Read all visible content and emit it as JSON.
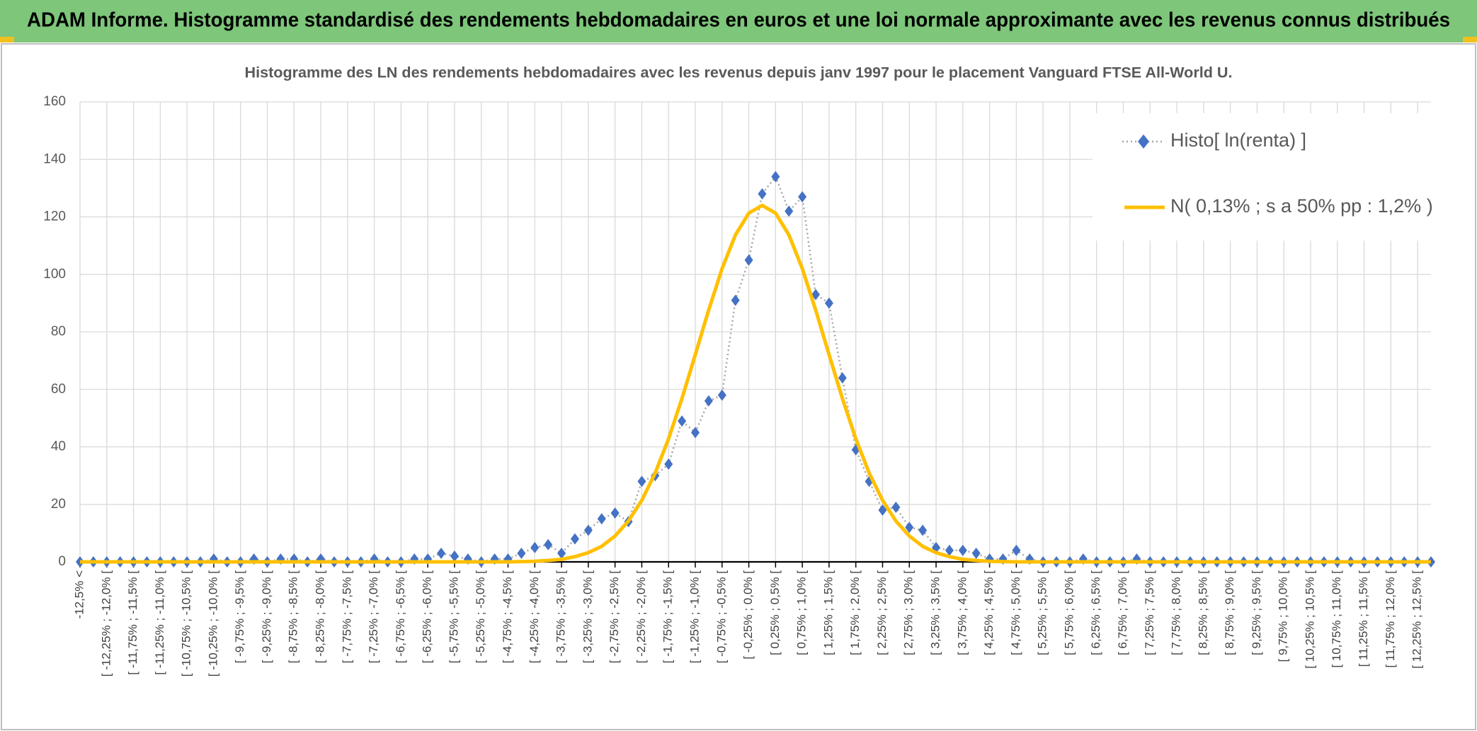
{
  "header": {
    "title": "ADAM Informe. Histogramme standardisé des rendements hebdomadaires en euros et une loi normale approximante avec les revenus connus distribués"
  },
  "chart_data": {
    "type": "line",
    "title": "Histogramme des LN des rendements hebdomadaires avec les revenus depuis janv 1997 pour le placement Vanguard FTSE All-World U.",
    "categories": [
      "-12,5% <",
      null,
      "[ -12,25% ; -12,0% [",
      null,
      "[ -11,75% ; -11,5% [",
      null,
      "[ -11,25% ; -11,0% [",
      null,
      "[ -10,75% ; -10,5% [",
      null,
      "[ -10,25% ; -10,0% [",
      null,
      "[ -9,75% ; -9,5% [",
      null,
      "[ -9,25% ; -9,0% [",
      null,
      "[ -8,75% ; -8,5% [",
      null,
      "[ -8,25% ; -8,0% [",
      null,
      "[ -7,75% ; -7,5% [",
      null,
      "[ -7,25% ; -7,0% [",
      null,
      "[ -6,75% ; -6,5% [",
      null,
      "[ -6,25% ; -6,0% [",
      null,
      "[ -5,75% ; -5,5% [",
      null,
      "[ -5,25% ; -5,0% [",
      null,
      "[ -4,75% ; -4,5% [",
      null,
      "[ -4,25% ; -4,0% [",
      null,
      "[ -3,75% ; -3,5% [",
      null,
      "[ -3,25% ; -3,0% [",
      null,
      "[ -2,75% ; -2,5% [",
      null,
      "[ -2,25% ; -2,0% [",
      null,
      "[ -1,75% ; -1,5% [",
      null,
      "[ -1,25% ; -1,0% [",
      null,
      "[ -0,75% ; -0,5% [",
      null,
      "[ -0,25% ; 0,0% [",
      null,
      "[ 0,25% ; 0,5% [",
      null,
      "[ 0,75% ; 1,0% [",
      null,
      "[ 1,25% ; 1,5% [",
      null,
      "[ 1,75% ; 2,0% [",
      null,
      "[ 2,25% ; 2,5% [",
      null,
      "[ 2,75% ; 3,0% [",
      null,
      "[ 3,25% ; 3,5% [",
      null,
      "[ 3,75% ; 4,0% [",
      null,
      "[ 4,25% ; 4,5% [",
      null,
      "[ 4,75% ; 5,0% [",
      null,
      "[ 5,25% ; 5,5% [",
      null,
      "[ 5,75% ; 6,0% [",
      null,
      "[ 6,25% ; 6,5% [",
      null,
      "[ 6,75% ; 7,0% [",
      null,
      "[ 7,25% ; 7,5% [",
      null,
      "[ 7,75% ; 8,0% [",
      null,
      "[ 8,25% ; 8,5% [",
      null,
      "[ 8,75% ; 9,0% [",
      null,
      "[ 9,25% ; 9,5% [",
      null,
      "[ 9,75% ; 10,0% [",
      null,
      "[ 10,25% ; 10,5% [",
      null,
      "[ 10,75% ; 11,0% [",
      null,
      "[ 11,25% ; 11,5% [",
      null,
      "[ 11,75% ; 12,0% [",
      null,
      "[ 12,25% ; 12,5% [",
      null
    ],
    "series": [
      {
        "name": "Histo[ ln(renta) ]",
        "color": "#4472c4",
        "values": [
          0,
          0,
          0,
          0,
          0,
          0,
          0,
          0,
          0,
          0,
          1,
          0,
          0,
          1,
          0,
          1,
          1,
          0,
          1,
          0,
          0,
          0,
          1,
          0,
          0,
          1,
          1,
          3,
          2,
          1,
          0,
          1,
          1,
          3,
          5,
          6,
          3,
          8,
          11,
          15,
          17,
          14,
          28,
          30,
          34,
          49,
          45,
          56,
          58,
          91,
          105,
          128,
          134,
          122,
          127,
          93,
          90,
          64,
          39,
          28,
          18,
          19,
          12,
          11,
          5,
          4,
          4,
          3,
          1,
          1,
          4,
          1,
          0,
          0,
          0,
          1,
          0,
          0,
          0,
          1,
          0,
          0,
          0,
          0,
          0,
          0,
          0,
          0,
          0,
          0,
          0,
          0,
          0,
          0,
          0,
          0,
          0,
          0,
          0,
          0,
          0,
          0
        ]
      },
      {
        "name": "N( 0,13% ; s a 50% pp : 1,2% )",
        "color": "#ffc000",
        "values": [
          0,
          0,
          0,
          0,
          0,
          0,
          0,
          0,
          0,
          0,
          0,
          0,
          0,
          0,
          0,
          0,
          0,
          0,
          0,
          0,
          0,
          0,
          0,
          0,
          0,
          0,
          0,
          0,
          0,
          0,
          0,
          0,
          0,
          0.1,
          0.2,
          0.5,
          0.9,
          1.8,
          3.2,
          5.4,
          9.0,
          14.2,
          21.4,
          30.9,
          42.8,
          56.8,
          72.1,
          87.6,
          102.0,
          113.7,
          121.3,
          124,
          121.3,
          113.7,
          102.0,
          87.6,
          72.1,
          56.8,
          42.8,
          30.9,
          21.4,
          14.2,
          9.0,
          5.4,
          3.2,
          1.8,
          0.9,
          0.5,
          0.2,
          0.1,
          0,
          0,
          0,
          0,
          0,
          0,
          0,
          0,
          0,
          0,
          0,
          0,
          0,
          0,
          0,
          0,
          0,
          0,
          0,
          0,
          0,
          0,
          0,
          0,
          0,
          0,
          0,
          0,
          0,
          0,
          0,
          0
        ]
      }
    ],
    "ylim": [
      0,
      160
    ],
    "yticks": [
      0,
      20,
      40,
      60,
      80,
      100,
      120,
      140,
      160
    ],
    "grid": true,
    "legend": "upper right"
  }
}
